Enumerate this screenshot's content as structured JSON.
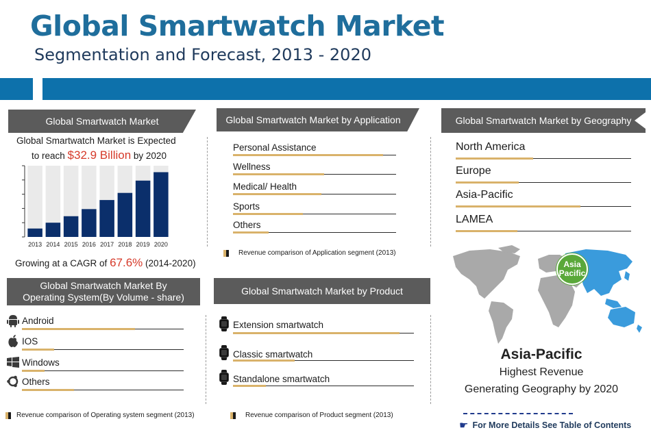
{
  "header": {
    "title": "Global Smartwatch Market",
    "subtitle": "Segmentation and Forecast, 2013 - 2020"
  },
  "market_panel": {
    "banner": "Global Smartwatch Market",
    "line1_a": "Global Smartwatch Market ",
    "line1_b": " is Expected",
    "line2_a": "to reach ",
    "line2_value": "$32.9 Billion",
    "line2_b": " by 2020",
    "cagr_a": "Growing at a CAGR of ",
    "cagr_value": "67.6%",
    "cagr_b": " (2014-2020)"
  },
  "application_panel": {
    "banner": "Global Smartwatch Market by Application",
    "items": [
      {
        "label": "Personal Assistance",
        "share": 0.92
      },
      {
        "label": "Wellness",
        "share": 0.56
      },
      {
        "label": "Medical/ Health",
        "share": 0.54
      },
      {
        "label": "Sports",
        "share": 0.43
      },
      {
        "label": "Others",
        "share": 0.22
      }
    ],
    "legend": "Revenue comparison of Application segment (2013)"
  },
  "geography_panel": {
    "banner": "Global Smartwatch Market by Geography",
    "items": [
      {
        "label": "North America",
        "share": 0.44
      },
      {
        "label": "Europe",
        "share": 0.36
      },
      {
        "label": "Asia-Pacific",
        "share": 0.71
      },
      {
        "label": "LAMEA",
        "share": 0.35
      }
    ],
    "map_badge_line1": "Asia",
    "map_badge_line2": "Pacific",
    "highlight_title": "Asia-Pacific",
    "highlight_line1": "Highest Revenue",
    "highlight_line2": "Generating Geography by 2020",
    "footer_link": "For More Details See Table of Contents"
  },
  "os_panel": {
    "banner_line1": "Global Smartwatch Market By",
    "banner_line2": "Operating System(By Volume - share)",
    "items": [
      {
        "label": "Android",
        "icon": "android-icon",
        "share": 0.7
      },
      {
        "label": "IOS",
        "icon": "apple-icon",
        "share": 0.2
      },
      {
        "label": "Windows",
        "icon": "windows-icon",
        "share": 0.14
      },
      {
        "label": "Others",
        "icon": "ubuntu-icon",
        "share": 0.32
      }
    ],
    "legend": "Revenue comparison of Operating system segment (2013)"
  },
  "product_panel": {
    "banner": "Global Smartwatch Market by Product",
    "items": [
      {
        "label": "Extension smartwatch",
        "share": 0.92
      },
      {
        "label": "Classic smartwatch",
        "share": 0.34
      },
      {
        "label": "Standalone smartwatch",
        "share": 0.18
      }
    ],
    "legend": "Revenue comparison of Product segment (2013)"
  },
  "colors": {
    "accent_blue": "#0d71ab",
    "bar_navy": "#0b2f6b",
    "bar_track": "#eaeaea",
    "highlight_red": "#d63a2a",
    "gold": "#d9b26a",
    "banner_gray": "#5b5b5b",
    "map_gray": "#a9a9a9",
    "map_asia_blue": "#3a9bdc",
    "badge_green": "#5aa83a"
  },
  "chart_data": {
    "type": "bar",
    "categories": [
      "2013",
      "2014",
      "2015",
      "2016",
      "2017",
      "2018",
      "2019",
      "2020"
    ],
    "values": [
      0.13,
      0.22,
      0.32,
      0.43,
      0.57,
      0.68,
      0.87,
      1.0
    ],
    "ylim": [
      0,
      1.1
    ],
    "yticks": 5,
    "grid": false
  }
}
